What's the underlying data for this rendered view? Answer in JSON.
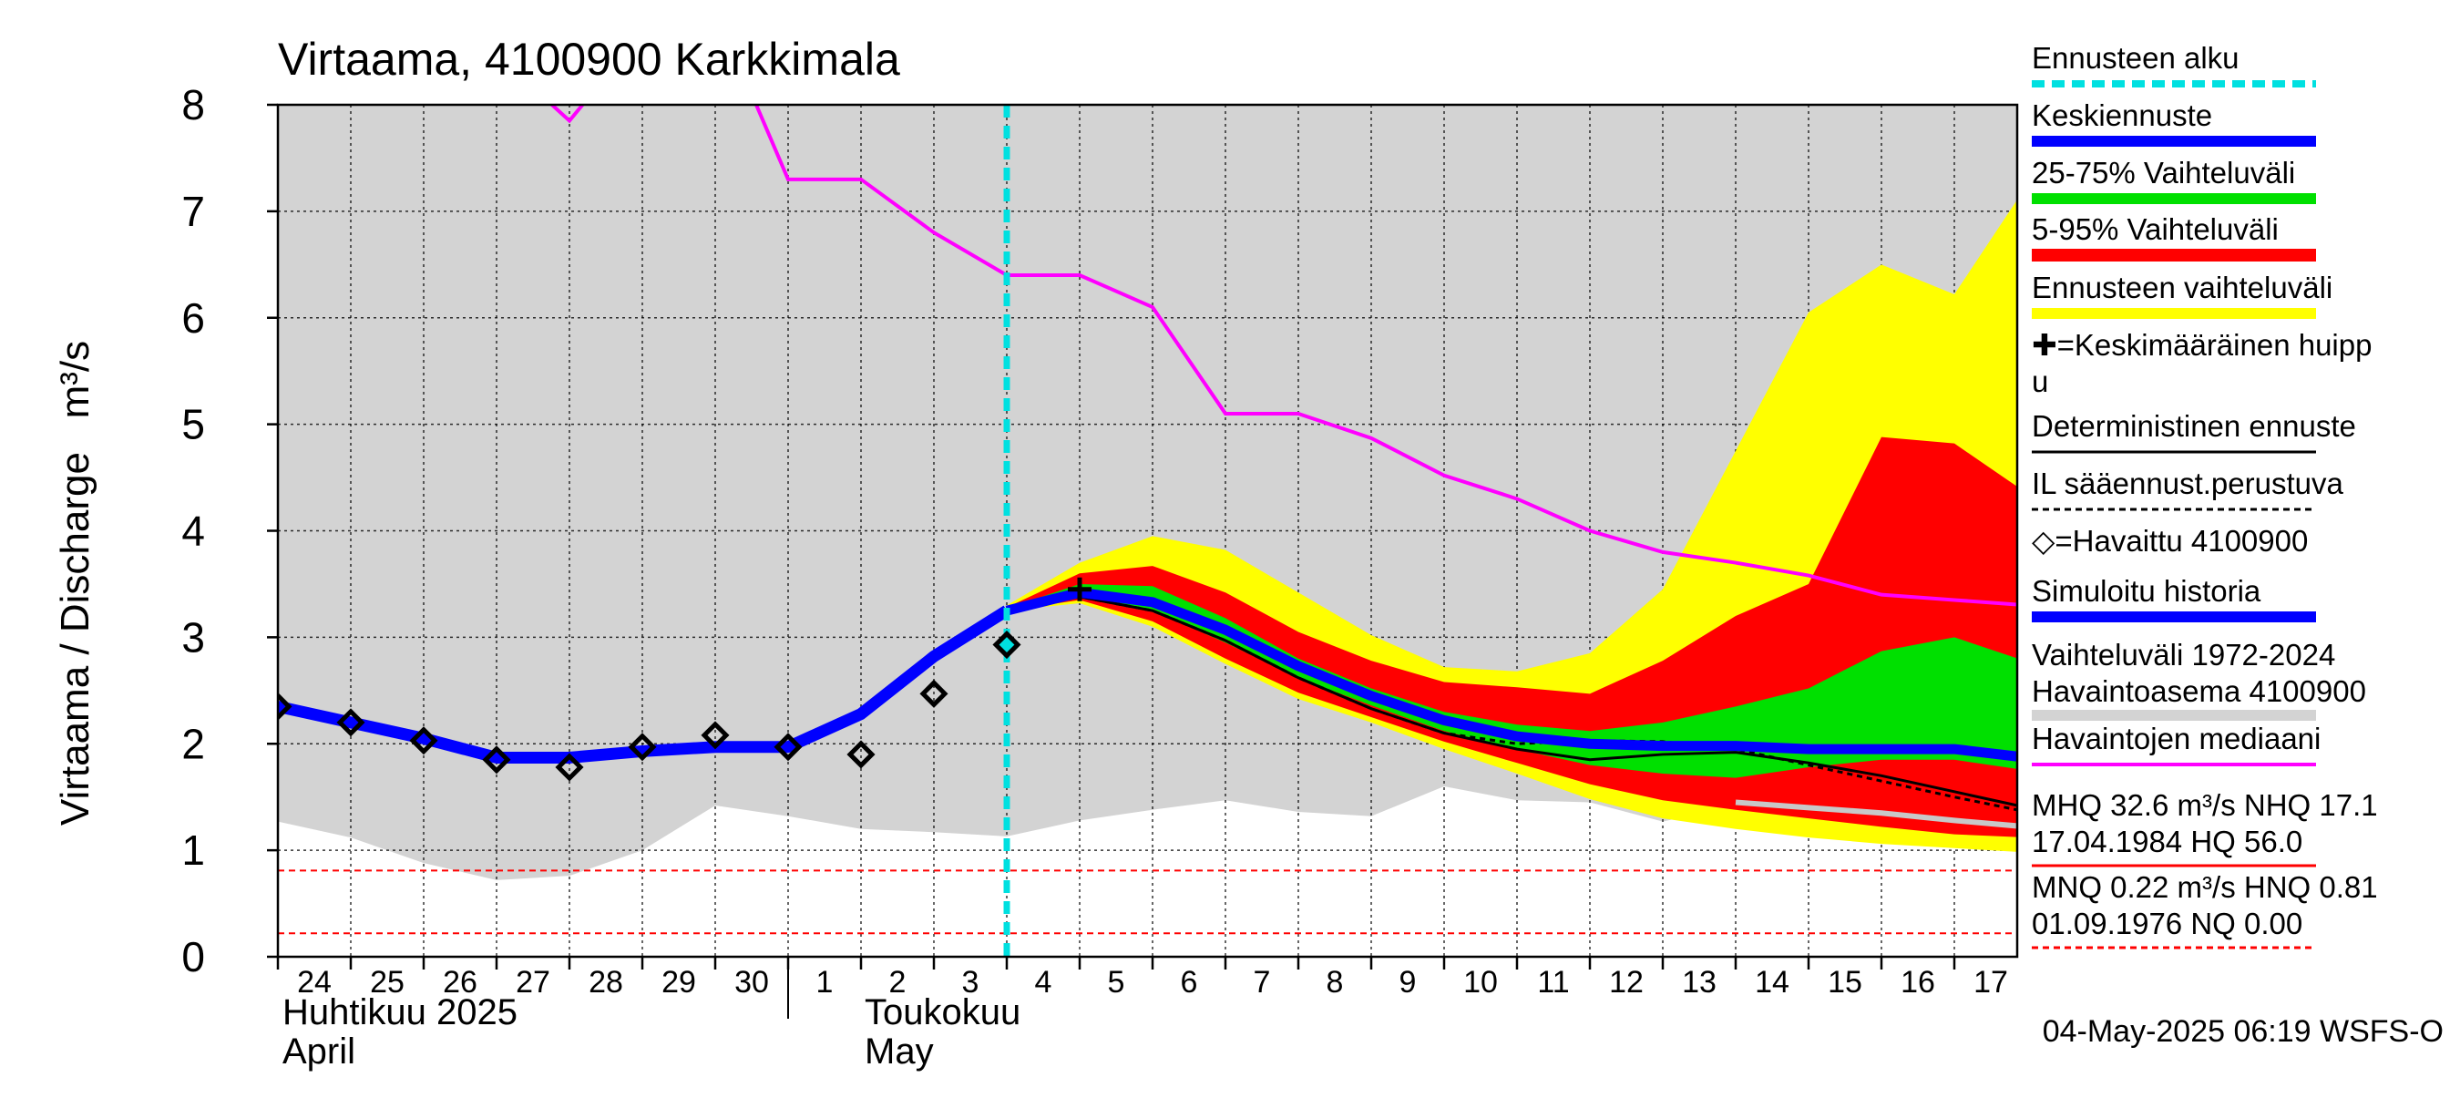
{
  "chart_data": {
    "type": "line",
    "title": "Virtaama, 4100900 Karkkimala",
    "ylabel": "Virtaama / Discharge   m³/s",
    "ylim": [
      0,
      8
    ],
    "yticks": [
      "0",
      "1",
      "2",
      "3",
      "4",
      "5",
      "6",
      "7",
      "8"
    ],
    "grid": true,
    "legend_position": "right",
    "x_day_labels": [
      "24",
      "25",
      "26",
      "27",
      "28",
      "29",
      "30",
      "1",
      "2",
      "3",
      "4",
      "5",
      "6",
      "7",
      "8",
      "9",
      "10",
      "11",
      "12",
      "13",
      "14",
      "15",
      "16",
      "17"
    ],
    "x_month_labels": [
      {
        "text": "Huhtikuu  2025",
        "day": "24"
      },
      {
        "text": "April",
        "day": "24"
      },
      {
        "text": "Toukokuu",
        "day": "2"
      },
      {
        "text": "May",
        "day": "2"
      }
    ],
    "xlim": [
      0,
      24
    ],
    "forecast_start_x": 10,
    "timestamp": "04-May-2025 06:19 WSFS-O",
    "colors": {
      "history_band": "#d3d3d3",
      "ensemble_range": "#ffff00",
      "p5_95": "#ff0000",
      "p25_75": "#00e000",
      "mean_forecast": "#0000ff",
      "median_obs": "#ff00ff",
      "forecast_start": "#00e0e0",
      "simulated": "#0000ff"
    },
    "series": {
      "history_band": {
        "upper": [
          [
            0,
            8
          ],
          [
            24,
            8
          ]
        ],
        "lower": [
          [
            0,
            1.27
          ],
          [
            1,
            1.12
          ],
          [
            2,
            0.88
          ],
          [
            3,
            0.72
          ],
          [
            4,
            0.76
          ],
          [
            5,
            1.0
          ],
          [
            6,
            1.42
          ],
          [
            7,
            1.32
          ],
          [
            8,
            1.2
          ],
          [
            9,
            1.17
          ],
          [
            10,
            1.13
          ],
          [
            11,
            1.28
          ],
          [
            12,
            1.38
          ],
          [
            13,
            1.47
          ],
          [
            14,
            1.36
          ],
          [
            15,
            1.32
          ],
          [
            16,
            1.6
          ],
          [
            17,
            1.47
          ],
          [
            18,
            1.45
          ],
          [
            19,
            1.27
          ],
          [
            20,
            1.42
          ],
          [
            21,
            1.32
          ],
          [
            22,
            1.12
          ],
          [
            23,
            1.07
          ],
          [
            24,
            1.02
          ]
        ]
      },
      "ensemble_range": {
        "upper": [
          [
            10,
            3.3
          ],
          [
            11,
            3.7
          ],
          [
            12,
            3.95
          ],
          [
            13,
            3.82
          ],
          [
            14,
            3.42
          ],
          [
            15,
            3.02
          ],
          [
            16,
            2.72
          ],
          [
            17,
            2.68
          ],
          [
            18,
            2.85
          ],
          [
            19,
            3.45
          ],
          [
            20,
            4.75
          ],
          [
            21,
            6.05
          ],
          [
            22,
            6.5
          ],
          [
            23,
            6.22
          ],
          [
            24,
            7.25
          ]
        ],
        "lower": [
          [
            10,
            3.25
          ],
          [
            11,
            3.32
          ],
          [
            12,
            3.1
          ],
          [
            13,
            2.75
          ],
          [
            14,
            2.42
          ],
          [
            15,
            2.2
          ],
          [
            16,
            1.95
          ],
          [
            17,
            1.72
          ],
          [
            18,
            1.48
          ],
          [
            19,
            1.3
          ],
          [
            20,
            1.2
          ],
          [
            21,
            1.12
          ],
          [
            22,
            1.06
          ],
          [
            23,
            1.02
          ],
          [
            24,
            0.98
          ]
        ]
      },
      "p5_95": {
        "upper": [
          [
            10,
            3.28
          ],
          [
            11,
            3.6
          ],
          [
            12,
            3.67
          ],
          [
            13,
            3.42
          ],
          [
            14,
            3.05
          ],
          [
            15,
            2.78
          ],
          [
            16,
            2.58
          ],
          [
            17,
            2.53
          ],
          [
            18,
            2.47
          ],
          [
            19,
            2.78
          ],
          [
            20,
            3.2
          ],
          [
            21,
            3.5
          ],
          [
            22,
            4.88
          ],
          [
            23,
            4.82
          ],
          [
            24,
            4.35
          ]
        ],
        "lower": [
          [
            10,
            3.25
          ],
          [
            11,
            3.35
          ],
          [
            12,
            3.15
          ],
          [
            13,
            2.8
          ],
          [
            14,
            2.48
          ],
          [
            15,
            2.25
          ],
          [
            16,
            2.02
          ],
          [
            17,
            1.82
          ],
          [
            18,
            1.62
          ],
          [
            19,
            1.47
          ],
          [
            20,
            1.38
          ],
          [
            21,
            1.3
          ],
          [
            22,
            1.22
          ],
          [
            23,
            1.15
          ],
          [
            24,
            1.12
          ]
        ]
      },
      "p25_75": {
        "upper": [
          [
            10,
            3.27
          ],
          [
            11,
            3.5
          ],
          [
            12,
            3.48
          ],
          [
            13,
            3.18
          ],
          [
            14,
            2.8
          ],
          [
            15,
            2.52
          ],
          [
            16,
            2.3
          ],
          [
            17,
            2.18
          ],
          [
            18,
            2.12
          ],
          [
            19,
            2.2
          ],
          [
            20,
            2.35
          ],
          [
            21,
            2.52
          ],
          [
            22,
            2.87
          ],
          [
            23,
            3.0
          ],
          [
            24,
            2.77
          ]
        ],
        "lower": [
          [
            10,
            3.25
          ],
          [
            11,
            3.4
          ],
          [
            12,
            3.25
          ],
          [
            13,
            2.95
          ],
          [
            14,
            2.62
          ],
          [
            15,
            2.36
          ],
          [
            16,
            2.12
          ],
          [
            17,
            1.95
          ],
          [
            18,
            1.8
          ],
          [
            19,
            1.72
          ],
          [
            20,
            1.68
          ],
          [
            21,
            1.78
          ],
          [
            22,
            1.85
          ],
          [
            23,
            1.85
          ],
          [
            24,
            1.75
          ]
        ]
      },
      "mean_forecast": [
        [
          10,
          3.25
        ],
        [
          11,
          3.42
        ],
        [
          12,
          3.33
        ],
        [
          13,
          3.07
        ],
        [
          14,
          2.73
        ],
        [
          15,
          2.45
        ],
        [
          16,
          2.22
        ],
        [
          17,
          2.07
        ],
        [
          18,
          2.0
        ],
        [
          19,
          1.98
        ],
        [
          20,
          1.98
        ],
        [
          21,
          1.95
        ],
        [
          22,
          1.95
        ],
        [
          23,
          1.95
        ],
        [
          24,
          1.87
        ]
      ],
      "deterministic": [
        [
          10,
          3.25
        ],
        [
          11,
          3.38
        ],
        [
          12,
          3.25
        ],
        [
          13,
          2.97
        ],
        [
          14,
          2.62
        ],
        [
          15,
          2.33
        ],
        [
          16,
          2.1
        ],
        [
          17,
          1.95
        ],
        [
          18,
          1.85
        ],
        [
          19,
          1.9
        ],
        [
          20,
          1.92
        ],
        [
          21,
          1.82
        ],
        [
          22,
          1.7
        ],
        [
          23,
          1.55
        ],
        [
          24,
          1.4
        ]
      ],
      "il_forecast": [
        [
          10,
          3.25
        ],
        [
          11,
          3.38
        ],
        [
          12,
          3.25
        ],
        [
          13,
          2.97
        ],
        [
          14,
          2.62
        ],
        [
          15,
          2.33
        ],
        [
          16,
          2.1
        ],
        [
          17,
          2.0
        ],
        [
          18,
          2.03
        ],
        [
          19,
          2.02
        ],
        [
          20,
          1.95
        ],
        [
          21,
          1.8
        ],
        [
          22,
          1.65
        ],
        [
          23,
          1.5
        ],
        [
          24,
          1.36
        ]
      ],
      "gray_line": [
        [
          20,
          1.45
        ],
        [
          21,
          1.4
        ],
        [
          22,
          1.35
        ],
        [
          23,
          1.28
        ],
        [
          24,
          1.22
        ]
      ],
      "simulated": [
        [
          0,
          2.35
        ],
        [
          1,
          2.2
        ],
        [
          2,
          2.05
        ],
        [
          3,
          1.87
        ],
        [
          4,
          1.87
        ],
        [
          5,
          1.93
        ],
        [
          6,
          1.97
        ],
        [
          7,
          1.97
        ],
        [
          8,
          2.28
        ],
        [
          9,
          2.82
        ],
        [
          10,
          3.25
        ]
      ],
      "observed": [
        [
          0,
          2.35
        ],
        [
          1,
          2.2
        ],
        [
          2,
          2.03
        ],
        [
          3,
          1.85
        ],
        [
          4,
          1.78
        ],
        [
          5,
          1.97
        ],
        [
          6,
          2.08
        ],
        [
          7,
          1.97
        ],
        [
          8,
          1.9
        ],
        [
          9,
          2.47
        ],
        [
          10,
          2.93
        ]
      ],
      "median_obs": [
        [
          3.6,
          8.1
        ],
        [
          4,
          7.85
        ],
        [
          4.3,
          8.1
        ],
        [
          6.5,
          8.1
        ],
        [
          7,
          7.3
        ],
        [
          8,
          7.3
        ],
        [
          9,
          6.8
        ],
        [
          10,
          6.4
        ],
        [
          11,
          6.4
        ],
        [
          12,
          6.1
        ],
        [
          13,
          5.1
        ],
        [
          14,
          5.1
        ],
        [
          15,
          4.87
        ],
        [
          16,
          4.52
        ],
        [
          17,
          4.3
        ],
        [
          18,
          4.0
        ],
        [
          19,
          3.8
        ],
        [
          20,
          3.7
        ],
        [
          21,
          3.58
        ],
        [
          22,
          3.4
        ],
        [
          23,
          3.35
        ],
        [
          24,
          3.3
        ]
      ],
      "mean_peak": [
        11,
        3.45
      ],
      "thresholds": [
        0.81,
        0.22
      ]
    },
    "legend": [
      {
        "label": "Ennusteen alku",
        "style": "dashed-cyan"
      },
      {
        "label": "Keskiennuste",
        "style": "blue"
      },
      {
        "label": "25-75% Vaihteluväli",
        "style": "green"
      },
      {
        "label": "5-95% Vaihteluväli",
        "style": "red"
      },
      {
        "label": "Ennusteen vaihteluväli",
        "style": "yellow"
      },
      {
        "label": "✚=Keskimääräinen huipp",
        "label2": "u",
        "style": "none"
      },
      {
        "label": "Deterministinen ennuste",
        "style": "black"
      },
      {
        "label": "IL sääennust.perustuva",
        "style": "dashed-black"
      },
      {
        "label": "◇=Havaittu 4100900",
        "style": "none"
      },
      {
        "label": "Simuloitu historia",
        "style": "blue"
      },
      {
        "label": "Vaihteluväli 1972-2024",
        "label2": " Havaintoasema 4100900",
        "style": "gray"
      },
      {
        "label": "Havaintojen mediaani",
        "style": "magenta"
      },
      {
        "label": "MHQ 32.6 m³/s NHQ 17.1",
        "label2": "17.04.1984 HQ 56.0",
        "style": "red-thin"
      },
      {
        "label": "MNQ 0.22 m³/s HNQ 0.81",
        "label2": "01.09.1976 NQ 0.00",
        "style": "dashed-red"
      }
    ]
  }
}
